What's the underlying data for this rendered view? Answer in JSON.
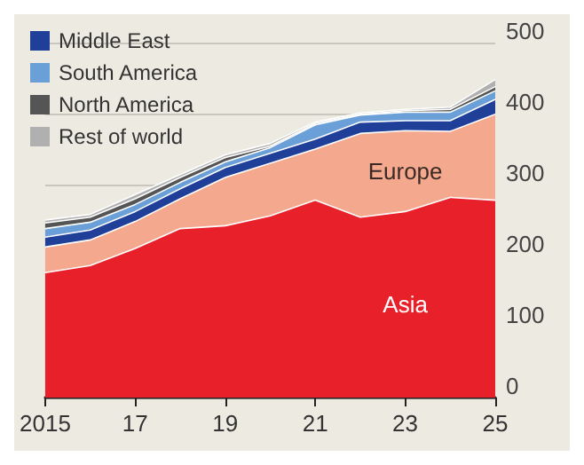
{
  "chart_data": {
    "type": "area",
    "stacked": true,
    "x": [
      2015,
      2016,
      2017,
      2018,
      2019,
      2020,
      2021,
      2022,
      2023,
      2024,
      2025
    ],
    "series": [
      {
        "name": "Asia",
        "color": "#e8202a",
        "values": [
          176,
          186,
          210,
          238,
          242,
          256,
          278,
          254,
          262,
          282,
          278
        ]
      },
      {
        "name": "Europe",
        "color": "#f4a88e",
        "values": [
          36,
          36,
          38,
          42,
          68,
          74,
          72,
          118,
          114,
          93,
          121
        ]
      },
      {
        "name": "Middle East",
        "color": "#1f3f99",
        "values": [
          14,
          14,
          14,
          14,
          14,
          14,
          14,
          16,
          14,
          15,
          21
        ]
      },
      {
        "name": "South America",
        "color": "#6a9fd8",
        "values": [
          12,
          11,
          10,
          9,
          8,
          8,
          20,
          10,
          12,
          12,
          12
        ]
      },
      {
        "name": "North America",
        "color": "#555555",
        "values": [
          8,
          7,
          8,
          7,
          6,
          2,
          2,
          1,
          2,
          4,
          6
        ]
      },
      {
        "name": "Rest of world",
        "color": "#b0b0b0",
        "values": [
          4,
          4,
          6,
          4,
          4,
          4,
          2,
          2,
          2,
          3,
          10
        ]
      }
    ],
    "xlim": [
      2015,
      2025
    ],
    "xticks": [
      {
        "value": 2015,
        "label": "2015"
      },
      {
        "value": 2017,
        "label": "17"
      },
      {
        "value": 2019,
        "label": "19"
      },
      {
        "value": 2021,
        "label": "21"
      },
      {
        "value": 2023,
        "label": "23"
      },
      {
        "value": 2025,
        "label": "25"
      }
    ],
    "ylim": [
      0,
      500
    ],
    "yticks": [
      0,
      100,
      200,
      300,
      400,
      500
    ],
    "grid": "y",
    "legend": "top left"
  }
}
